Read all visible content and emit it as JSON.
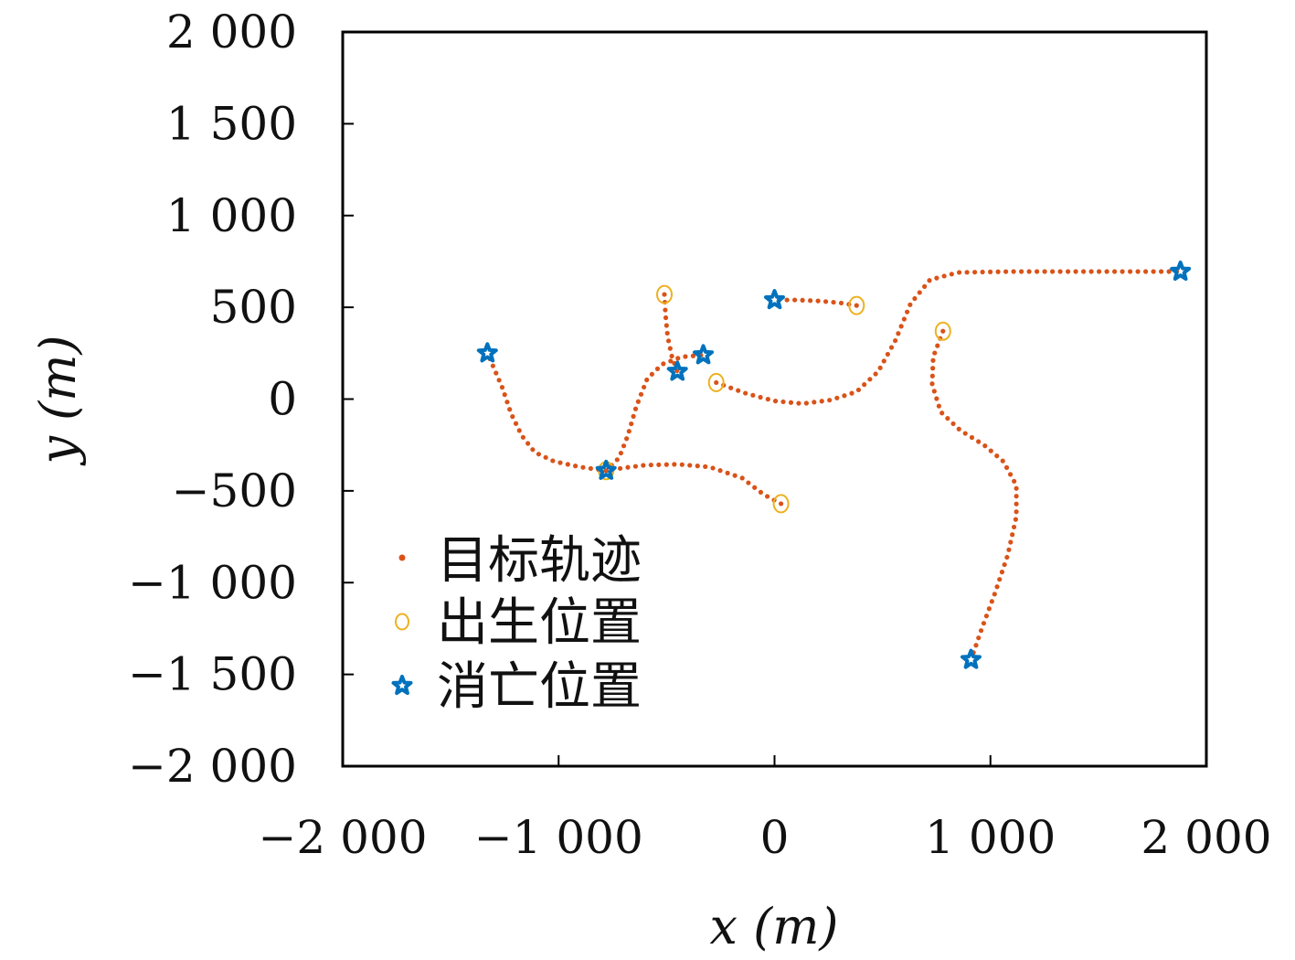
{
  "chart_data": {
    "type": "scatter",
    "xlabel": "x (m)",
    "ylabel": "y (m)",
    "xlim": [
      -2000,
      2000
    ],
    "ylim": [
      -2000,
      2000
    ],
    "xticks": [
      -2000,
      -1000,
      0,
      1000,
      2000
    ],
    "yticks": [
      -2000,
      -1500,
      -1000,
      -500,
      0,
      500,
      1000,
      1500,
      2000
    ],
    "xtick_labels": [
      "−2 000",
      "−1 000",
      "0",
      "1 000",
      "2 000"
    ],
    "ytick_labels": [
      "−2 000",
      "−1 500",
      "−1 000",
      "−500",
      "0",
      "500",
      "1 000",
      "1 500",
      "2 000"
    ],
    "grid": false,
    "legend_position": "lower-left",
    "colors": {
      "trajectory": "#D95319",
      "birth": "#EDB120",
      "death": "#0072BD"
    },
    "legend": [
      {
        "label": "目标轨迹",
        "marker": "dot"
      },
      {
        "label": "出生位置",
        "marker": "circle"
      },
      {
        "label": "消亡位置",
        "marker": "star"
      }
    ],
    "tracks": [
      {
        "birth": [
          -780,
          -390
        ],
        "death": [
          -1330,
          250
        ],
        "path": [
          [
            -780,
            -390
          ],
          [
            -900,
            -370
          ],
          [
            -1020,
            -340
          ],
          [
            -1110,
            -290
          ],
          [
            -1170,
            -200
          ],
          [
            -1220,
            -80
          ],
          [
            -1260,
            60
          ],
          [
            -1300,
            170
          ],
          [
            -1330,
            250
          ]
        ]
      },
      {
        "birth": [
          -780,
          -390
        ],
        "death": [
          -330,
          240
        ],
        "path": [
          [
            -780,
            -390
          ],
          [
            -720,
            -320
          ],
          [
            -680,
            -200
          ],
          [
            -640,
            -40
          ],
          [
            -590,
            110
          ],
          [
            -520,
            190
          ],
          [
            -430,
            230
          ],
          [
            -330,
            240
          ]
        ]
      },
      {
        "birth": [
          30,
          -570
        ],
        "death": [
          -780,
          -390
        ],
        "path": [
          [
            30,
            -570
          ],
          [
            -50,
            -520
          ],
          [
            -150,
            -430
          ],
          [
            -300,
            -370
          ],
          [
            -450,
            -355
          ],
          [
            -600,
            -360
          ],
          [
            -700,
            -375
          ],
          [
            -780,
            -390
          ]
        ]
      },
      {
        "birth": [
          -510,
          570
        ],
        "death": [
          -450,
          150
        ],
        "path": [
          [
            -510,
            570
          ],
          [
            -505,
            460
          ],
          [
            -495,
            340
          ],
          [
            -475,
            230
          ],
          [
            -450,
            150
          ]
        ]
      },
      {
        "birth": [
          -270,
          90
        ],
        "death": [
          1880,
          695
        ],
        "path": [
          [
            -270,
            90
          ],
          [
            -130,
            30
          ],
          [
            0,
            -10
          ],
          [
            130,
            -25
          ],
          [
            260,
            -5
          ],
          [
            380,
            40
          ],
          [
            480,
            150
          ],
          [
            560,
            320
          ],
          [
            630,
            520
          ],
          [
            720,
            650
          ],
          [
            850,
            690
          ],
          [
            1100,
            695
          ],
          [
            1400,
            695
          ],
          [
            1650,
            695
          ],
          [
            1880,
            695
          ]
        ]
      },
      {
        "birth": [
          380,
          510
        ],
        "death": [
          0,
          540
        ],
        "path": [
          [
            380,
            510
          ],
          [
            300,
            525
          ],
          [
            200,
            535
          ],
          [
            100,
            540
          ],
          [
            0,
            540
          ]
        ]
      },
      {
        "birth": [
          780,
          370
        ],
        "death": [
          910,
          -1420
        ],
        "path": [
          [
            780,
            370
          ],
          [
            735,
            230
          ],
          [
            730,
            80
          ],
          [
            770,
            -70
          ],
          [
            860,
            -170
          ],
          [
            970,
            -250
          ],
          [
            1060,
            -340
          ],
          [
            1120,
            -470
          ],
          [
            1120,
            -640
          ],
          [
            1080,
            -850
          ],
          [
            1020,
            -1060
          ],
          [
            960,
            -1250
          ],
          [
            910,
            -1420
          ]
        ]
      }
    ]
  }
}
